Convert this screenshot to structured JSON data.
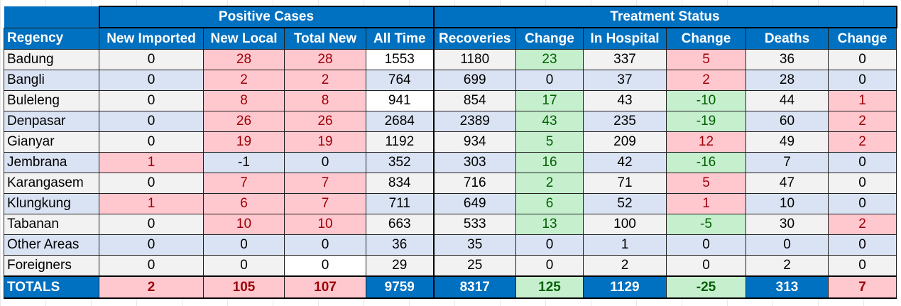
{
  "header": {
    "groups": {
      "positive": "Positive Cases",
      "treatment": "Treatment Status"
    },
    "columns": [
      "Regency",
      "New Imported",
      "New Local",
      "Total New",
      "All Time",
      "Recoveries",
      "Change",
      "In Hospital",
      "Change",
      "Deaths",
      "Change"
    ]
  },
  "rows": [
    {
      "name": "Badung",
      "cells": [
        "0",
        "28",
        "28",
        "1553",
        "1180",
        "23",
        "337",
        "5",
        "36",
        "0"
      ]
    },
    {
      "name": "Bangli",
      "cells": [
        "0",
        "2",
        "2",
        "764",
        "699",
        "0",
        "37",
        "2",
        "28",
        "0"
      ]
    },
    {
      "name": "Buleleng",
      "cells": [
        "0",
        "8",
        "8",
        "941",
        "854",
        "17",
        "43",
        "-10",
        "44",
        "1"
      ]
    },
    {
      "name": "Denpasar",
      "cells": [
        "0",
        "26",
        "26",
        "2684",
        "2389",
        "43",
        "235",
        "-19",
        "60",
        "2"
      ]
    },
    {
      "name": "Gianyar",
      "cells": [
        "0",
        "19",
        "19",
        "1192",
        "934",
        "5",
        "209",
        "12",
        "49",
        "2"
      ]
    },
    {
      "name": "Jembrana",
      "cells": [
        "1",
        "-1",
        "0",
        "352",
        "303",
        "16",
        "42",
        "-16",
        "7",
        "0"
      ]
    },
    {
      "name": "Karangasem",
      "cells": [
        "0",
        "7",
        "7",
        "834",
        "716",
        "2",
        "71",
        "5",
        "47",
        "0"
      ]
    },
    {
      "name": "Klungkung",
      "cells": [
        "1",
        "6",
        "7",
        "711",
        "649",
        "6",
        "52",
        "1",
        "10",
        "0"
      ]
    },
    {
      "name": "Tabanan",
      "cells": [
        "0",
        "10",
        "10",
        "663",
        "533",
        "13",
        "100",
        "-5",
        "30",
        "2"
      ]
    },
    {
      "name": "Other Areas",
      "cells": [
        "0",
        "0",
        "0",
        "36",
        "35",
        "0",
        "1",
        "0",
        "0",
        "0"
      ]
    },
    {
      "name": "Foreigners",
      "cells": [
        "0",
        "0",
        "0",
        "29",
        "25",
        "0",
        "2",
        "0",
        "2",
        "0"
      ]
    }
  ],
  "totals": {
    "name": "TOTALS",
    "cells": [
      "2",
      "105",
      "107",
      "9759",
      "8317",
      "125",
      "1129",
      "-25",
      "313",
      "7"
    ]
  },
  "colors": {
    "header_blue": "#0070c0",
    "red_fill": "#ffc7ce",
    "red_text": "#9c0006",
    "green_fill": "#c6efce",
    "green_text": "#006100",
    "row_grey": "#f2f2f2",
    "row_blue": "#dae3f3"
  }
}
